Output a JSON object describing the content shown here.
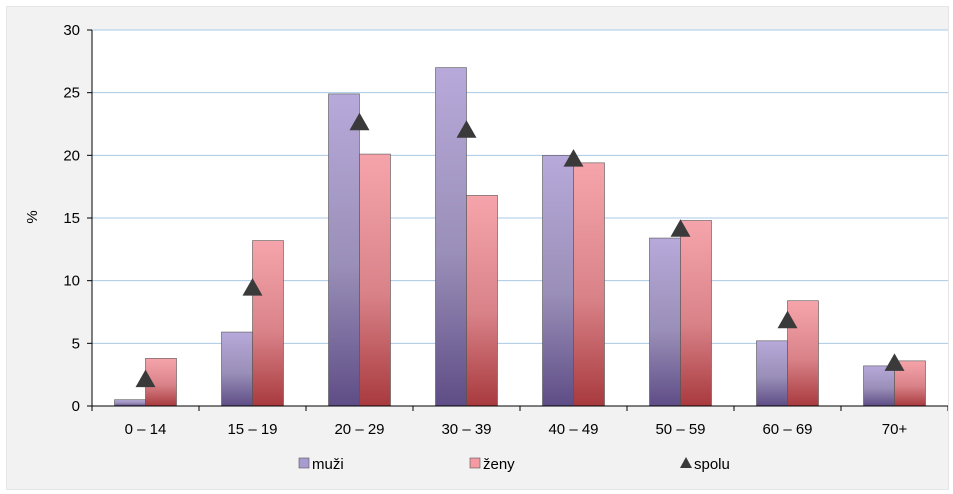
{
  "chart_data": {
    "type": "bar",
    "categories": [
      "0 – 14",
      "15 – 19",
      "20 – 29",
      "30 – 39",
      "40 – 49",
      "50 – 59",
      "60 – 69",
      "70+"
    ],
    "series": [
      {
        "name": "muži",
        "kind": "bar",
        "color": "#a89bcf",
        "values": [
          0.5,
          5.9,
          24.9,
          27.0,
          20.0,
          13.4,
          5.2,
          3.2
        ]
      },
      {
        "name": "ženy",
        "kind": "bar",
        "color": "#f49aa2",
        "values": [
          3.8,
          13.2,
          20.1,
          16.8,
          19.4,
          14.8,
          8.4,
          3.6
        ]
      },
      {
        "name": "spolu",
        "kind": "marker",
        "color": "#3a3a3a",
        "values": [
          2.1,
          9.4,
          22.6,
          22.0,
          19.7,
          14.1,
          6.8,
          3.4
        ]
      }
    ],
    "ylabel": "%",
    "ylim": [
      0,
      30
    ],
    "yticks": [
      0,
      5,
      10,
      15,
      20,
      25,
      30
    ],
    "grid": true,
    "legend_position": "bottom"
  }
}
